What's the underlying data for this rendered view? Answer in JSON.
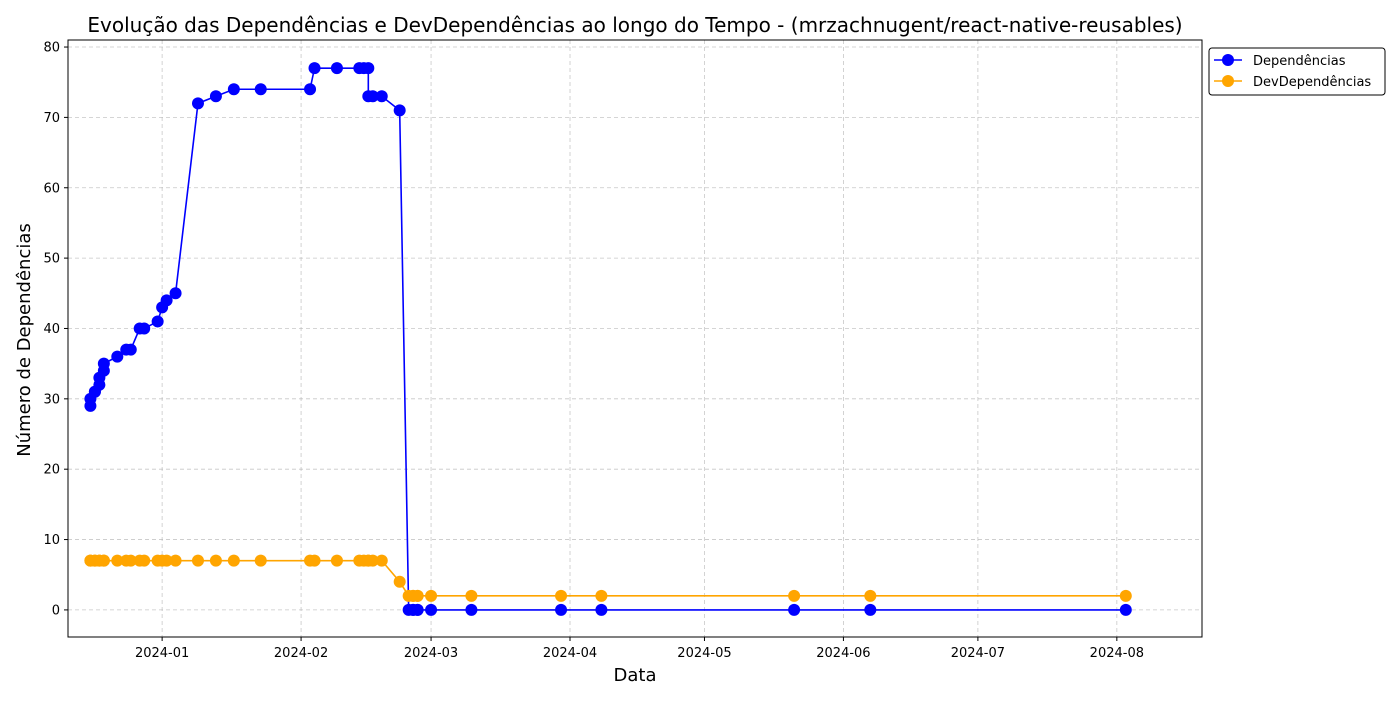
{
  "chart_data": {
    "type": "line",
    "title": "Evolução das Dependências e DevDependências ao longo do Tempo - (mrzachnugent/react-native-reusables)",
    "xlabel": "Data",
    "ylabel": "Número de Dependências",
    "x_ticks": [
      "2024-01",
      "2024-02",
      "2024-03",
      "2024-04",
      "2024-05",
      "2024-06",
      "2024-07",
      "2024-08"
    ],
    "y_ticks": [
      0,
      10,
      20,
      30,
      40,
      50,
      60,
      70,
      80
    ],
    "xlim": [
      "2023-12-11",
      "2024-08-20"
    ],
    "ylim": [
      -3.85,
      81
    ],
    "grid": true,
    "legend_position": "upper-right-outside",
    "x": [
      "2023-12-16",
      "2023-12-16",
      "2023-12-17",
      "2023-12-17",
      "2023-12-18",
      "2023-12-18",
      "2023-12-19",
      "2023-12-19",
      "2023-12-22",
      "2023-12-24",
      "2023-12-25",
      "2023-12-27",
      "2023-12-28",
      "2023-12-31",
      "2024-01-01",
      "2024-01-02",
      "2024-01-04",
      "2024-01-09",
      "2024-01-13",
      "2024-01-17",
      "2024-01-23",
      "2024-02-03",
      "2024-02-04",
      "2024-02-09",
      "2024-02-14",
      "2024-02-15",
      "2024-02-16",
      "2024-02-16",
      "2024-02-17",
      "2024-02-19",
      "2024-02-23",
      "2024-02-25",
      "2024-02-26",
      "2024-02-26",
      "2024-02-27",
      "2024-02-27",
      "2024-03-01",
      "2024-03-10",
      "2024-03-30",
      "2024-04-08",
      "2024-05-21",
      "2024-06-07",
      "2024-08-03"
    ],
    "series": [
      {
        "name": "Dependências",
        "color": "#0000ff",
        "values": [
          29,
          30,
          31,
          31,
          32,
          33,
          34,
          35,
          36,
          37,
          37,
          40,
          40,
          41,
          43,
          44,
          45,
          72,
          73,
          74,
          74,
          74,
          77,
          77,
          77,
          77,
          77,
          73,
          73,
          73,
          71,
          0,
          0,
          0,
          0,
          0,
          0,
          0,
          0,
          0,
          0,
          0,
          0
        ]
      },
      {
        "name": "DevDependências",
        "color": "#ffa500",
        "values": [
          7,
          7,
          7,
          7,
          7,
          7,
          7,
          7,
          7,
          7,
          7,
          7,
          7,
          7,
          7,
          7,
          7,
          7,
          7,
          7,
          7,
          7,
          7,
          7,
          7,
          7,
          7,
          7,
          7,
          7,
          4,
          2,
          2,
          2,
          2,
          2,
          2,
          2,
          2,
          2,
          2,
          2,
          2
        ]
      }
    ]
  }
}
